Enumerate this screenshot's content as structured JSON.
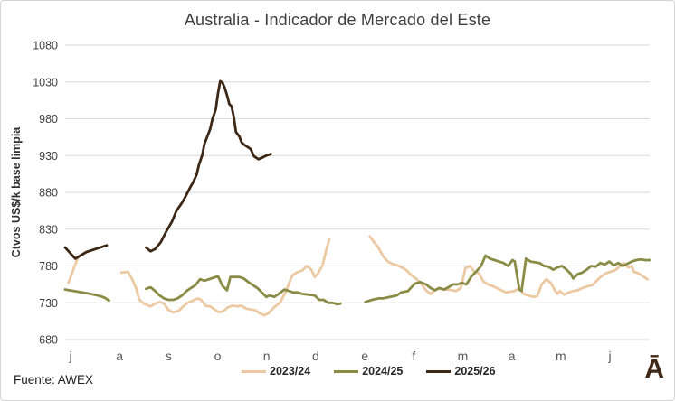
{
  "footer": {
    "source_note": "Fuente: AWEX",
    "watermark": "Ā",
    "watermark_color": "#3f2817"
  },
  "chart_data": {
    "type": "line",
    "title": "Australia - Indicador de Mercado del Este",
    "xlabel": "",
    "ylabel": "Ctvos US$/k base limpia",
    "ylim": [
      680,
      1080
    ],
    "ytick_step": 50,
    "yticks": [
      1080,
      1030,
      980,
      930,
      880,
      830,
      780,
      730,
      680
    ],
    "xticks": [
      "j",
      "a",
      "s",
      "o",
      "n",
      "d",
      "e",
      "f",
      "m",
      "a",
      "m",
      "j"
    ],
    "grid": "horizontal",
    "legend_position": "bottom",
    "colors": {
      "grid": "#d9d9d9",
      "ytick_text": "#404040",
      "xtick_text": "#595959"
    },
    "series": [
      {
        "name": "2023/24",
        "color": "#ecc9a2",
        "segments": [
          [
            [
              0.3,
              757
            ],
            [
              0.8,
              778
            ],
            [
              1.1,
              790
            ]
          ],
          [
            [
              5.0,
              771
            ],
            [
              5.6,
              772
            ],
            [
              6.0,
              761
            ],
            [
              6.3,
              750
            ],
            [
              6.6,
              734
            ],
            [
              7.0,
              729
            ],
            [
              7.6,
              725
            ],
            [
              8.0,
              729
            ],
            [
              8.4,
              731
            ],
            [
              8.8,
              729
            ],
            [
              9.2,
              720
            ],
            [
              9.6,
              717
            ],
            [
              10.1,
              719
            ],
            [
              10.5,
              725
            ],
            [
              10.9,
              730
            ],
            [
              11.4,
              733
            ],
            [
              11.8,
              736
            ],
            [
              12.1,
              734
            ],
            [
              12.5,
              726
            ],
            [
              12.9,
              725
            ],
            [
              13.3,
              721
            ],
            [
              13.7,
              717
            ],
            [
              14.1,
              719
            ],
            [
              14.5,
              724
            ],
            [
              14.9,
              726
            ],
            [
              15.3,
              725
            ],
            [
              15.7,
              726
            ],
            [
              16.1,
              722
            ],
            [
              16.5,
              721
            ],
            [
              16.9,
              720
            ],
            [
              17.3,
              716
            ],
            [
              17.7,
              713
            ],
            [
              18.1,
              716
            ],
            [
              18.6,
              724
            ],
            [
              19.1,
              730
            ],
            [
              19.6,
              744
            ],
            [
              20.2,
              767
            ],
            [
              20.6,
              771
            ],
            [
              21.1,
              774
            ],
            [
              21.5,
              780
            ],
            [
              21.9,
              775
            ],
            [
              22.2,
              765
            ],
            [
              22.5,
              770
            ],
            [
              22.9,
              781
            ],
            [
              23.2,
              800
            ],
            [
              23.5,
              816
            ]
          ],
          [
            [
              27.1,
              820
            ],
            [
              27.5,
              812
            ],
            [
              27.9,
              804
            ],
            [
              28.3,
              793
            ],
            [
              28.7,
              786
            ],
            [
              29.1,
              783
            ],
            [
              29.7,
              780
            ],
            [
              30.3,
              775
            ],
            [
              30.7,
              769
            ],
            [
              31.2,
              763
            ],
            [
              31.6,
              757
            ],
            [
              32.1,
              747
            ],
            [
              32.5,
              742
            ],
            [
              32.8,
              746
            ],
            [
              33.2,
              750
            ],
            [
              33.6,
              748
            ],
            [
              34.0,
              748
            ],
            [
              34.4,
              747
            ],
            [
              34.8,
              746
            ],
            [
              35.2,
              750
            ],
            [
              35.6,
              777
            ],
            [
              36.0,
              780
            ],
            [
              36.4,
              772
            ],
            [
              36.8,
              770
            ],
            [
              37.2,
              759
            ],
            [
              37.6,
              755
            ],
            [
              38.0,
              753
            ],
            [
              38.4,
              750
            ],
            [
              38.8,
              747
            ],
            [
              39.2,
              744
            ],
            [
              39.6,
              745
            ],
            [
              40.0,
              746
            ],
            [
              40.4,
              750
            ],
            [
              40.8,
              742
            ],
            [
              41.2,
              740
            ],
            [
              41.6,
              738
            ],
            [
              42.0,
              739
            ],
            [
              42.4,
              755
            ],
            [
              42.8,
              762
            ],
            [
              43.2,
              757
            ],
            [
              43.6,
              746
            ],
            [
              43.8,
              742
            ],
            [
              44.0,
              746
            ],
            [
              44.4,
              741
            ],
            [
              44.8,
              744
            ],
            [
              45.2,
              746
            ],
            [
              45.6,
              747
            ],
            [
              46.0,
              750
            ],
            [
              46.4,
              752
            ],
            [
              46.9,
              754
            ],
            [
              47.3,
              760
            ],
            [
              47.7,
              766
            ],
            [
              48.1,
              770
            ],
            [
              48.5,
              772
            ],
            [
              48.9,
              774
            ],
            [
              49.3,
              779
            ],
            [
              49.7,
              784
            ],
            [
              50.1,
              778
            ],
            [
              50.4,
              780
            ],
            [
              50.6,
              772
            ],
            [
              51.0,
              770
            ],
            [
              51.4,
              766
            ],
            [
              51.8,
              762
            ]
          ]
        ]
      },
      {
        "name": "2024/25",
        "color": "#8a8c46",
        "segments": [
          [
            [
              0,
              748
            ],
            [
              0.8,
              746
            ],
            [
              1.5,
              744
            ],
            [
              2.3,
              742
            ],
            [
              2.9,
              740
            ],
            [
              3.5,
              737
            ],
            [
              3.9,
              733
            ]
          ],
          [
            [
              7.2,
              749
            ],
            [
              7.6,
              751
            ],
            [
              8.0,
              746
            ],
            [
              8.4,
              740
            ],
            [
              8.8,
              736
            ],
            [
              9.2,
              734
            ],
            [
              9.6,
              734
            ],
            [
              10.0,
              736
            ],
            [
              10.4,
              740
            ],
            [
              10.8,
              746
            ],
            [
              11.2,
              750
            ],
            [
              11.6,
              754
            ],
            [
              12.0,
              762
            ],
            [
              12.4,
              760
            ],
            [
              12.8,
              762
            ],
            [
              13.2,
              764
            ],
            [
              13.6,
              766
            ],
            [
              14.0,
              753
            ],
            [
              14.4,
              747
            ],
            [
              14.7,
              765
            ],
            [
              15.1,
              765
            ],
            [
              15.5,
              765
            ],
            [
              15.9,
              763
            ],
            [
              16.3,
              758
            ],
            [
              16.7,
              754
            ],
            [
              17.1,
              750
            ],
            [
              17.5,
              744
            ],
            [
              17.9,
              738
            ],
            [
              18.2,
              740
            ],
            [
              18.6,
              738
            ],
            [
              19.0,
              742
            ],
            [
              19.5,
              748
            ],
            [
              19.9,
              746
            ],
            [
              20.3,
              744
            ],
            [
              20.7,
              744
            ],
            [
              21.1,
              742
            ],
            [
              21.7,
              741
            ],
            [
              22.2,
              740
            ],
            [
              22.6,
              734
            ],
            [
              23.0,
              734
            ],
            [
              23.4,
              730
            ],
            [
              23.8,
              730
            ],
            [
              24.2,
              728
            ],
            [
              24.5,
              729
            ]
          ],
          [
            [
              26.7,
              731
            ],
            [
              27.3,
              734
            ],
            [
              27.9,
              736
            ],
            [
              28.3,
              736
            ],
            [
              28.9,
              738
            ],
            [
              29.5,
              740
            ],
            [
              29.9,
              744
            ],
            [
              30.5,
              746
            ],
            [
              31.1,
              756
            ],
            [
              31.6,
              758
            ],
            [
              32.1,
              755
            ],
            [
              32.5,
              750
            ],
            [
              32.9,
              747
            ],
            [
              33.3,
              750
            ],
            [
              33.7,
              748
            ],
            [
              34.1,
              751
            ],
            [
              34.5,
              755
            ],
            [
              34.9,
              755
            ],
            [
              35.3,
              757
            ],
            [
              35.7,
              755
            ],
            [
              36.1,
              765
            ],
            [
              36.6,
              773
            ],
            [
              37.0,
              780
            ],
            [
              37.4,
              794
            ],
            [
              37.8,
              790
            ],
            [
              38.2,
              788
            ],
            [
              38.6,
              786
            ],
            [
              39.0,
              784
            ],
            [
              39.4,
              780
            ],
            [
              39.8,
              788
            ],
            [
              40.0,
              786
            ],
            [
              40.4,
              748
            ],
            [
              40.6,
              746
            ],
            [
              41.0,
              790
            ],
            [
              41.4,
              786
            ],
            [
              41.8,
              785
            ],
            [
              42.2,
              784
            ],
            [
              42.6,
              780
            ],
            [
              43.0,
              779
            ],
            [
              43.4,
              775
            ],
            [
              43.8,
              778
            ],
            [
              44.2,
              780
            ],
            [
              44.6,
              775
            ],
            [
              45.0,
              769
            ],
            [
              45.2,
              763
            ],
            [
              45.6,
              769
            ],
            [
              46.0,
              771
            ],
            [
              46.4,
              775
            ],
            [
              46.8,
              780
            ],
            [
              47.2,
              779
            ],
            [
              47.6,
              784
            ],
            [
              48.0,
              782
            ],
            [
              48.4,
              786
            ],
            [
              48.8,
              781
            ],
            [
              49.2,
              784
            ],
            [
              49.6,
              780
            ],
            [
              50.0,
              783
            ],
            [
              50.4,
              786
            ],
            [
              50.8,
              788
            ],
            [
              51.2,
              789
            ],
            [
              51.6,
              788
            ],
            [
              52.0,
              788
            ]
          ]
        ]
      },
      {
        "name": "2025/26",
        "color": "#3d2817",
        "segments": [
          [
            [
              0,
              805
            ],
            [
              0.9,
              790
            ],
            [
              1.9,
              799
            ],
            [
              2.9,
              804
            ],
            [
              3.7,
              808
            ]
          ],
          [
            [
              7.2,
              805
            ],
            [
              7.6,
              800
            ],
            [
              8.0,
              803
            ],
            [
              8.5,
              812
            ],
            [
              9.0,
              827
            ],
            [
              9.5,
              840
            ],
            [
              9.9,
              855
            ],
            [
              10.4,
              866
            ],
            [
              10.7,
              874
            ],
            [
              11.1,
              886
            ],
            [
              11.4,
              894
            ],
            [
              11.7,
              904
            ],
            [
              11.9,
              917
            ],
            [
              12.2,
              931
            ],
            [
              12.4,
              946
            ],
            [
              12.7,
              958
            ],
            [
              12.9,
              966
            ],
            [
              13.1,
              979
            ],
            [
              13.4,
              993
            ],
            [
              13.6,
              1015
            ],
            [
              13.8,
              1031
            ],
            [
              14.0,
              1029
            ],
            [
              14.2,
              1022
            ],
            [
              14.4,
              1012
            ],
            [
              14.6,
              1000
            ],
            [
              14.8,
              997
            ],
            [
              15.0,
              983
            ],
            [
              15.2,
              962
            ],
            [
              15.5,
              956
            ],
            [
              15.7,
              948
            ],
            [
              15.9,
              945
            ],
            [
              16.2,
              942
            ],
            [
              16.5,
              939
            ],
            [
              16.8,
              929
            ],
            [
              17.2,
              925
            ],
            [
              17.5,
              927
            ],
            [
              17.9,
              930
            ],
            [
              18.3,
              932
            ]
          ]
        ]
      }
    ]
  }
}
